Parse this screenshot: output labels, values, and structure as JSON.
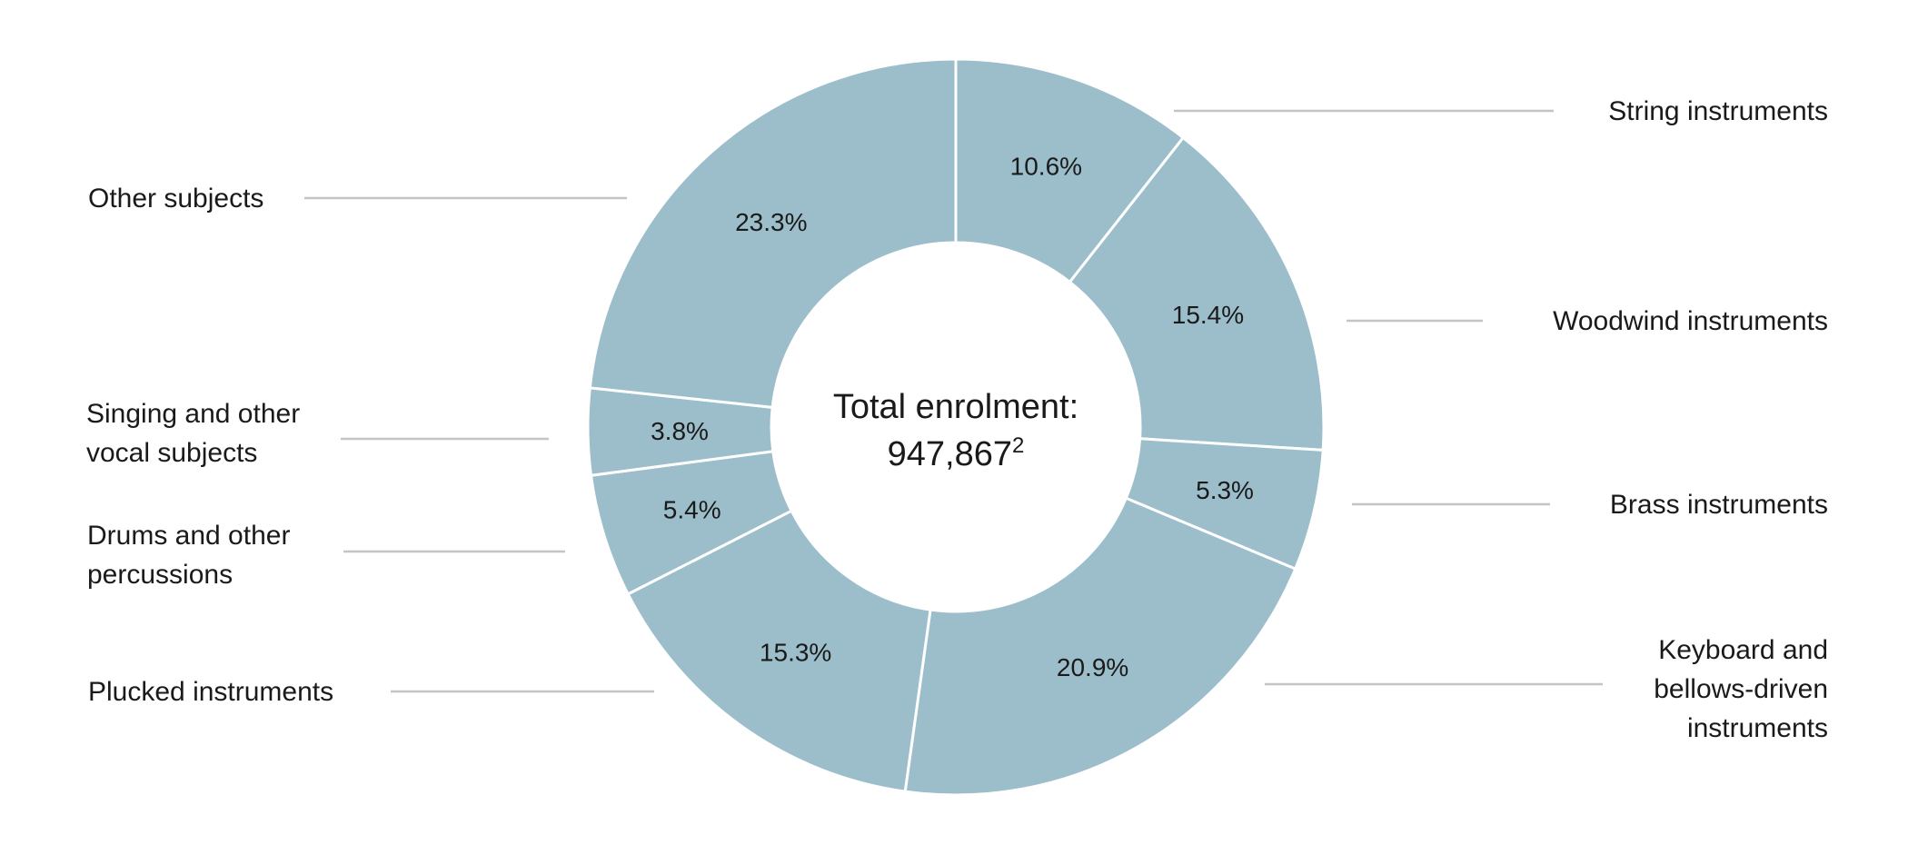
{
  "chart_data": {
    "type": "pie",
    "variant": "donut",
    "center_label": {
      "line1": "Total enrolment:",
      "value": "947,867",
      "footnote": "2"
    },
    "colors": {
      "slice": "#9cbecb",
      "separator": "#ffffff",
      "leader": "#c4c4c4"
    },
    "slices": [
      {
        "name": "String instruments",
        "label_lines": [
          "String instruments"
        ],
        "value": 10.6,
        "value_label": "10.6%"
      },
      {
        "name": "Woodwind instruments",
        "label_lines": [
          "Woodwind instruments"
        ],
        "value": 15.4,
        "value_label": "15.4%"
      },
      {
        "name": "Brass instruments",
        "label_lines": [
          "Brass instruments"
        ],
        "value": 5.3,
        "value_label": "5.3%"
      },
      {
        "name": "Keyboard and bellows-driven instruments",
        "label_lines": [
          "Keyboard and",
          "bellows-driven",
          "instruments"
        ],
        "value": 20.9,
        "value_label": "20.9%"
      },
      {
        "name": "Plucked instruments",
        "label_lines": [
          "Plucked instruments"
        ],
        "value": 15.3,
        "value_label": "15.3%"
      },
      {
        "name": "Drums and other percussions",
        "label_lines": [
          "Drums and other",
          "percussions"
        ],
        "value": 5.4,
        "value_label": "5.4%"
      },
      {
        "name": "Singing and other vocal subjects",
        "label_lines": [
          "Singing and other",
          "vocal subjects"
        ],
        "value": 3.8,
        "value_label": "3.8%"
      },
      {
        "name": "Other subjects",
        "label_lines": [
          "Other subjects"
        ],
        "value": 23.3,
        "value_label": "23.3%"
      }
    ]
  }
}
